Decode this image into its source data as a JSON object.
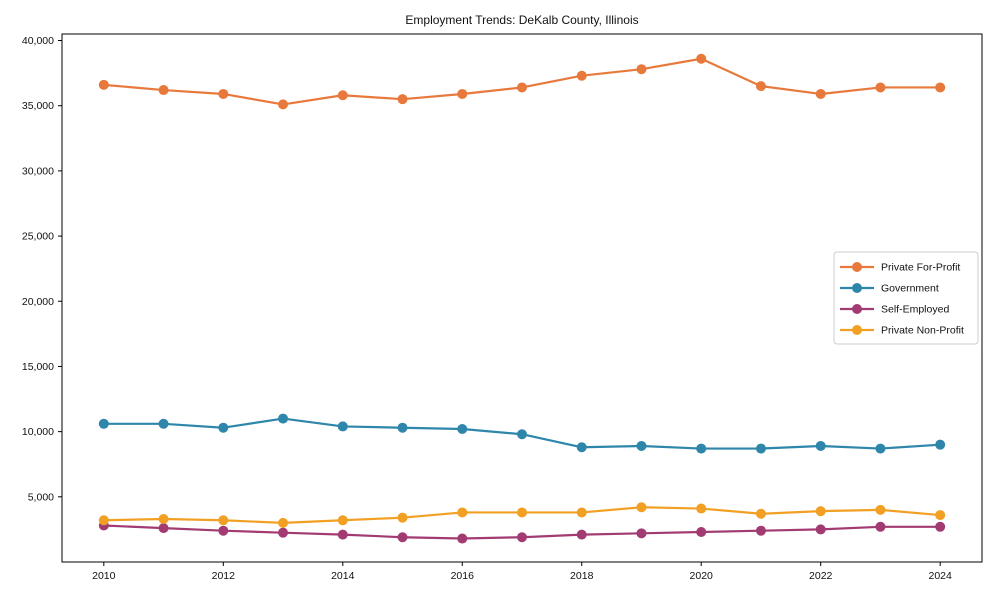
{
  "chart_data": {
    "type": "line",
    "title": "Employment Trends: DeKalb County, Illinois",
    "xlabel": "",
    "ylabel": "",
    "x": [
      2010,
      2011,
      2012,
      2013,
      2014,
      2015,
      2016,
      2017,
      2018,
      2019,
      2020,
      2021,
      2022,
      2023,
      2024
    ],
    "series": [
      {
        "name": "Private For-Profit",
        "color": "#E8793C",
        "values": [
          36600,
          36200,
          35900,
          35100,
          35800,
          35500,
          35900,
          36400,
          37300,
          37800,
          38600,
          36500,
          35900,
          36400,
          36400
        ]
      },
      {
        "name": "Government",
        "color": "#2E86AB",
        "values": [
          10600,
          10600,
          10300,
          11000,
          10400,
          10300,
          10200,
          9800,
          8800,
          8900,
          8700,
          8700,
          8900,
          8700,
          9000
        ]
      },
      {
        "name": "Self-Employed",
        "color": "#A23B72",
        "values": [
          2800,
          2600,
          2400,
          2250,
          2100,
          1900,
          1800,
          1900,
          2100,
          2200,
          2300,
          2400,
          2500,
          2700,
          2700
        ]
      },
      {
        "name": "Private Non-Profit",
        "color": "#F2A024",
        "values": [
          3200,
          3300,
          3200,
          3000,
          3200,
          3400,
          3800,
          3800,
          3800,
          4200,
          4100,
          3700,
          3900,
          4000,
          3600
        ]
      }
    ],
    "x_ticks": [
      2010,
      2012,
      2014,
      2016,
      2018,
      2020,
      2022,
      2024
    ],
    "x_tick_labels": [
      "2010",
      "2012",
      "2014",
      "2016",
      "2018",
      "2020",
      "2022",
      "2024"
    ],
    "y_ticks": [
      5000,
      10000,
      15000,
      20000,
      25000,
      30000,
      35000,
      40000
    ],
    "y_tick_labels": [
      "5,000",
      "10,000",
      "15,000",
      "20,000",
      "25,000",
      "30,000",
      "35,000",
      "40,000"
    ],
    "xlim": [
      2009.3,
      2024.7
    ],
    "ylim": [
      0,
      40500
    ],
    "grid": false,
    "legend_position": "center right",
    "marker": "circle",
    "line_width": 2.2,
    "marker_radius": 5,
    "frame_color": "#000000",
    "legend_border_color": "#cccccc",
    "text_color": "#111111"
  }
}
